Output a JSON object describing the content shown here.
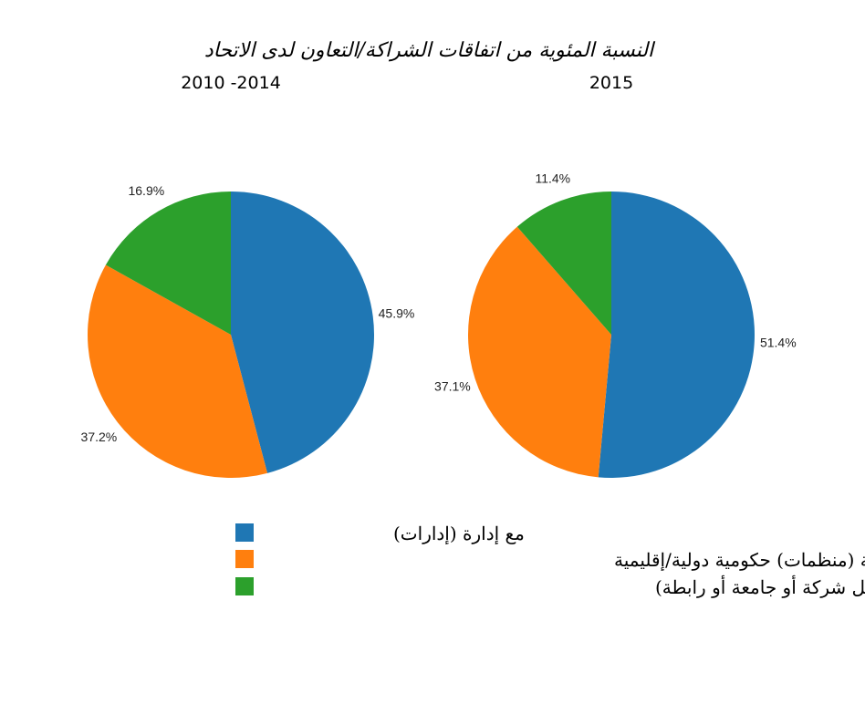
{
  "chart_data": {
    "type": "pie",
    "title": "النسبة المئوية من اتفاقات الشراكة/التعاون لدى الاتحاد",
    "categories": [
      "مع إدارة (إدارات)",
      "مع منظمة (منظمات) حكومية دولية/إقليمية",
      "مع هيئات أخرى (من قبيل شركة أو جامعة أو رابطة)"
    ],
    "colors": [
      "#1f77b4",
      "#ff7f0e",
      "#2ca02c"
    ],
    "legend": "bottom-center",
    "charts": [
      {
        "title": "2010 -2014",
        "values": [
          45.9,
          37.2,
          16.9
        ],
        "labels": [
          "45.9%",
          "37.2%",
          "16.9%"
        ]
      },
      {
        "title": "2015",
        "values": [
          51.4,
          37.1,
          11.4
        ],
        "labels": [
          "51.4%",
          "37.1%",
          "11.4%"
        ]
      }
    ]
  }
}
